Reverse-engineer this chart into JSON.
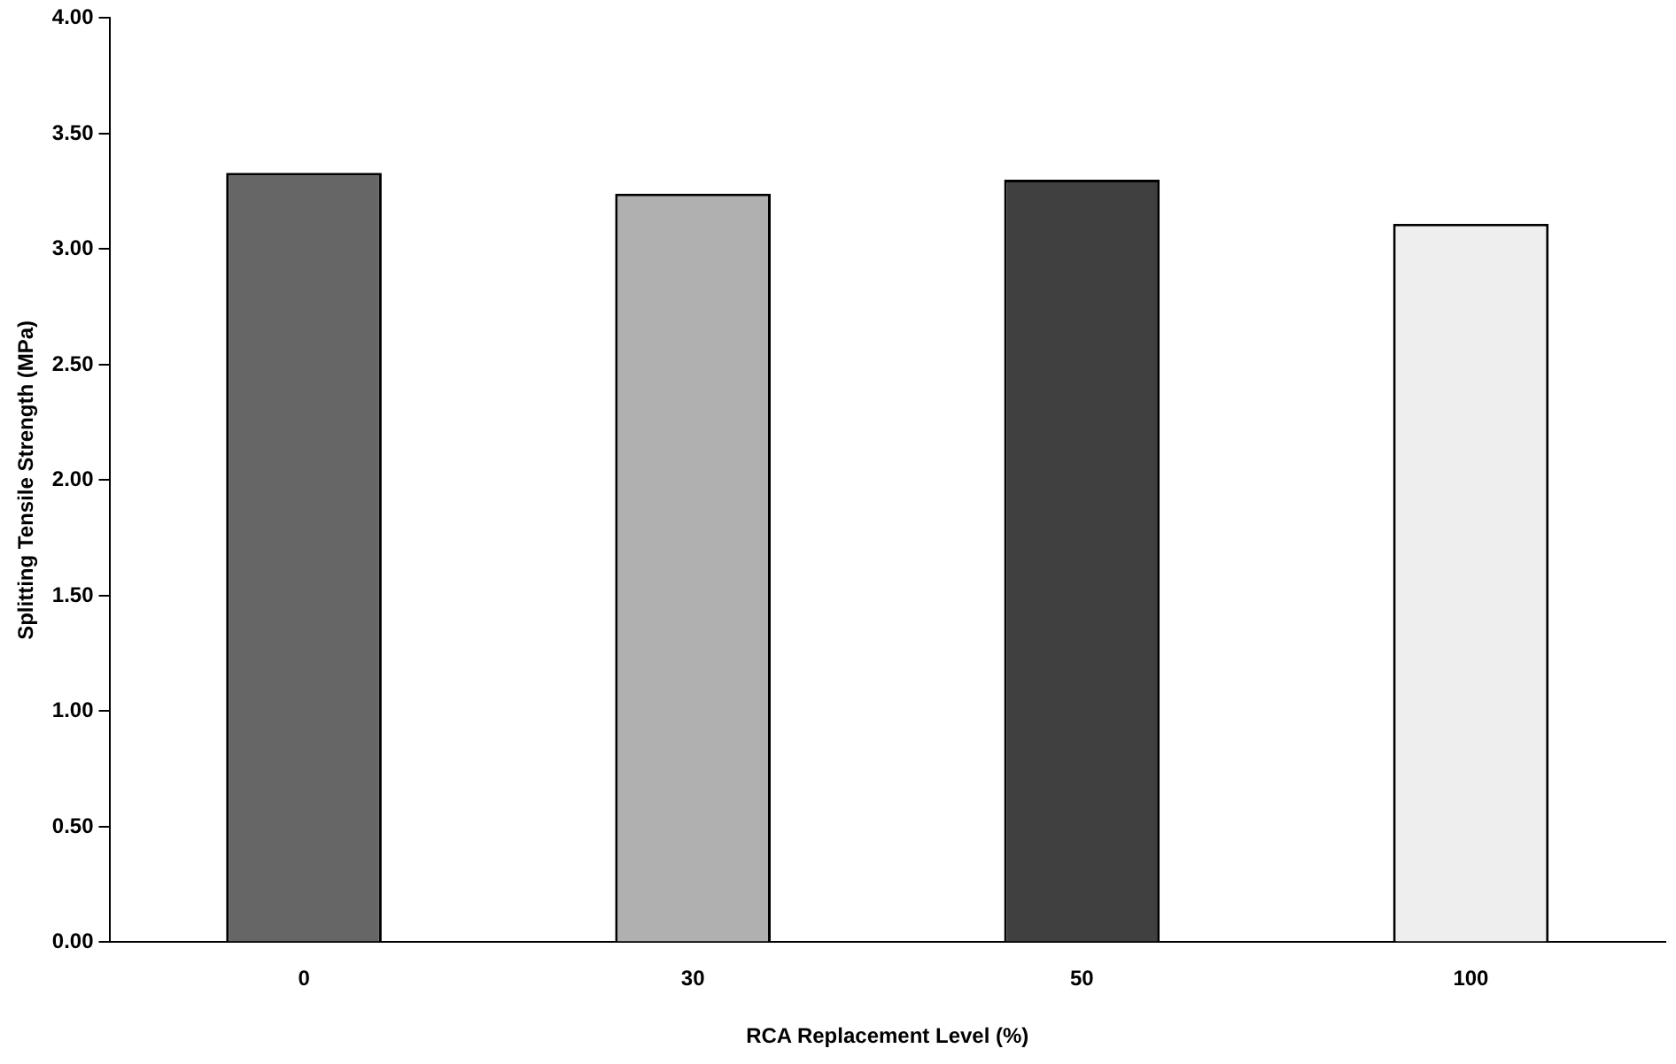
{
  "chart_data": {
    "type": "bar",
    "xlabel": "RCA Replacement Level (%)",
    "ylabel": "Splitting Tensile Strength (MPa)",
    "categories": [
      "0",
      "30",
      "50",
      "100"
    ],
    "values": [
      3.33,
      3.24,
      3.3,
      3.11
    ],
    "colors": [
      "#666666",
      "#b0b0b0",
      "#404040",
      "#eeeeee"
    ],
    "ylim": [
      0,
      4
    ],
    "yticks": [
      {
        "value": 0,
        "label": "0.00"
      },
      {
        "value": 0.5,
        "label": "0.50"
      },
      {
        "value": 1,
        "label": "1.00"
      },
      {
        "value": 1.5,
        "label": "1.50"
      },
      {
        "value": 2,
        "label": "2.00"
      },
      {
        "value": 2.5,
        "label": "2.50"
      },
      {
        "value": 3,
        "label": "3.00"
      },
      {
        "value": 3.5,
        "label": "3.50"
      },
      {
        "value": 4,
        "label": "4.00"
      }
    ],
    "grid": false,
    "legend": false
  }
}
